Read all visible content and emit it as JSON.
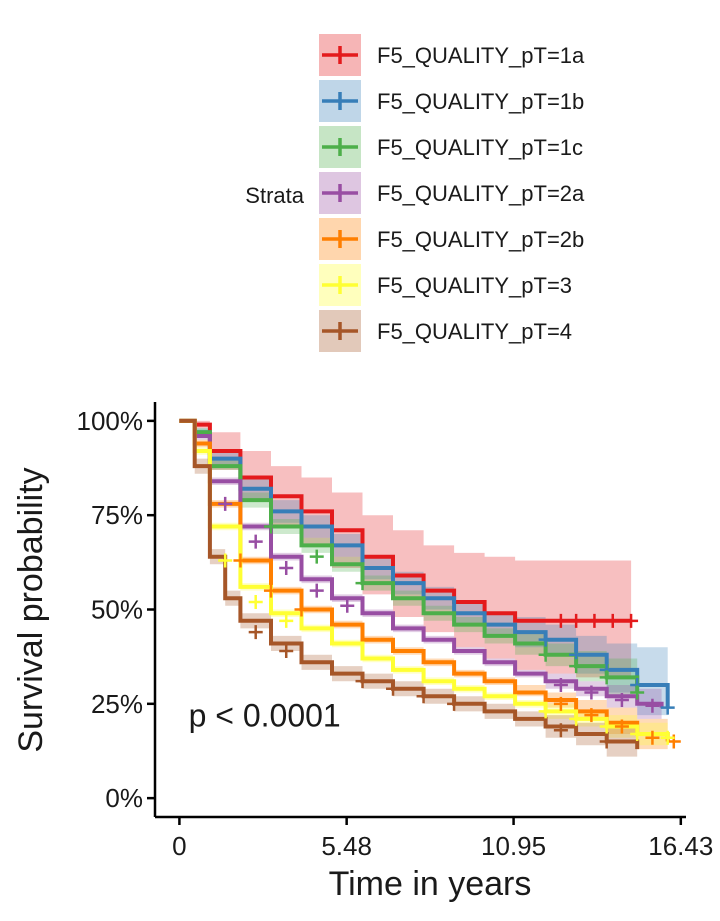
{
  "chart_data": {
    "type": "line",
    "subtype": "kaplan-meier survival curves with confidence bands and censor marks",
    "title": "",
    "xlabel": "Time in years",
    "ylabel": "Survival probability",
    "xlim": [
      -0.8,
      16.6
    ],
    "ylim": [
      -0.05,
      1.05
    ],
    "x_ticks": [
      0,
      5.48,
      10.95,
      16.43
    ],
    "x_tick_labels": [
      "0",
      "5.48",
      "10.95",
      "16.43"
    ],
    "y_ticks": [
      0,
      0.25,
      0.5,
      0.75,
      1.0
    ],
    "y_tick_labels": [
      "0%",
      "25%",
      "50%",
      "75%",
      "100%"
    ],
    "annotation": "p <  0.0001",
    "annotation_pos": {
      "x": 0.3,
      "y": 0.19
    },
    "grid": false,
    "legend": {
      "title": "Strata",
      "position": "top"
    },
    "series": [
      {
        "name": "F5_QUALITY_pT=1a",
        "color": "#E41A1C",
        "x": [
          0,
          0.5,
          1,
          2,
          3,
          4,
          5,
          6,
          7,
          8,
          9,
          10,
          11,
          12,
          13,
          14.8
        ],
        "y": [
          1.0,
          0.99,
          0.92,
          0.85,
          0.8,
          0.76,
          0.71,
          0.64,
          0.59,
          0.55,
          0.52,
          0.49,
          0.47,
          0.47,
          0.47,
          0.47
        ],
        "lower": [
          1.0,
          0.98,
          0.87,
          0.79,
          0.72,
          0.67,
          0.61,
          0.54,
          0.48,
          0.44,
          0.4,
          0.37,
          0.34,
          0.33,
          0.32,
          0.32
        ],
        "upper": [
          1.0,
          1.0,
          0.97,
          0.92,
          0.88,
          0.85,
          0.81,
          0.75,
          0.71,
          0.67,
          0.65,
          0.64,
          0.63,
          0.63,
          0.63,
          0.63
        ],
        "censor_x": [
          12.5,
          13.0,
          13.6,
          14.2,
          14.8
        ],
        "censor_y": [
          0.47,
          0.47,
          0.47,
          0.47,
          0.47
        ]
      },
      {
        "name": "F5_QUALITY_pT=1b",
        "color": "#377EB8",
        "x": [
          0,
          0.5,
          1,
          2,
          3,
          4,
          5,
          6,
          7,
          8,
          9,
          10,
          11,
          12,
          13,
          14,
          15,
          16
        ],
        "y": [
          1.0,
          0.97,
          0.9,
          0.82,
          0.76,
          0.72,
          0.67,
          0.61,
          0.57,
          0.53,
          0.49,
          0.46,
          0.44,
          0.42,
          0.38,
          0.34,
          0.3,
          0.24
        ],
        "lower": [
          1.0,
          0.96,
          0.88,
          0.79,
          0.73,
          0.69,
          0.64,
          0.58,
          0.54,
          0.5,
          0.46,
          0.43,
          0.4,
          0.38,
          0.33,
          0.28,
          0.22,
          0.14
        ],
        "upper": [
          1.0,
          0.98,
          0.92,
          0.85,
          0.79,
          0.75,
          0.7,
          0.64,
          0.6,
          0.56,
          0.52,
          0.49,
          0.48,
          0.46,
          0.43,
          0.41,
          0.4,
          0.46
        ],
        "censor_x": [
          12.0,
          13.0,
          14.0,
          15.0,
          16.0
        ],
        "censor_y": [
          0.42,
          0.38,
          0.34,
          0.3,
          0.24
        ]
      },
      {
        "name": "F5_QUALITY_pT=1c",
        "color": "#4DAF4A",
        "x": [
          0,
          0.5,
          1,
          2,
          3,
          4,
          5,
          6,
          7,
          8,
          9,
          10,
          11,
          12,
          13,
          14,
          15
        ],
        "y": [
          1.0,
          0.97,
          0.88,
          0.79,
          0.72,
          0.67,
          0.62,
          0.57,
          0.53,
          0.49,
          0.46,
          0.43,
          0.41,
          0.38,
          0.35,
          0.32,
          0.28
        ],
        "lower": [
          1.0,
          0.96,
          0.87,
          0.77,
          0.7,
          0.65,
          0.6,
          0.55,
          0.51,
          0.47,
          0.44,
          0.41,
          0.38,
          0.35,
          0.31,
          0.27,
          0.22
        ],
        "upper": [
          1.0,
          0.98,
          0.9,
          0.81,
          0.74,
          0.69,
          0.64,
          0.59,
          0.55,
          0.51,
          0.48,
          0.45,
          0.44,
          0.41,
          0.39,
          0.37,
          0.34
        ],
        "censor_x": [
          3.0,
          4.5,
          6.0,
          12.0,
          13.0,
          14.0,
          15.0
        ],
        "censor_y": [
          0.72,
          0.64,
          0.57,
          0.38,
          0.35,
          0.32,
          0.28
        ]
      },
      {
        "name": "F5_QUALITY_pT=2a",
        "color": "#984EA3",
        "x": [
          0,
          0.5,
          1,
          2,
          3,
          4,
          5,
          6,
          7,
          8,
          9,
          10,
          11,
          12,
          13,
          14,
          15,
          15.8
        ],
        "y": [
          1.0,
          0.96,
          0.84,
          0.72,
          0.64,
          0.58,
          0.53,
          0.49,
          0.45,
          0.42,
          0.39,
          0.36,
          0.33,
          0.31,
          0.29,
          0.27,
          0.25,
          0.24
        ],
        "lower": [
          1.0,
          0.95,
          0.83,
          0.71,
          0.63,
          0.57,
          0.52,
          0.48,
          0.44,
          0.41,
          0.38,
          0.35,
          0.32,
          0.29,
          0.27,
          0.24,
          0.21,
          0.19
        ],
        "upper": [
          1.0,
          0.97,
          0.85,
          0.73,
          0.65,
          0.59,
          0.54,
          0.5,
          0.46,
          0.43,
          0.4,
          0.37,
          0.34,
          0.33,
          0.31,
          0.3,
          0.29,
          0.29
        ],
        "censor_x": [
          1.5,
          2.5,
          3.5,
          4.5,
          5.5,
          12.5,
          13.5,
          14.5,
          15.5
        ],
        "censor_y": [
          0.78,
          0.68,
          0.61,
          0.55,
          0.51,
          0.3,
          0.28,
          0.26,
          0.245
        ]
      },
      {
        "name": "F5_QUALITY_pT=2b",
        "color": "#FF7F00",
        "x": [
          0,
          0.5,
          1,
          2,
          3,
          4,
          5,
          6,
          7,
          8,
          9,
          10,
          11,
          12,
          13,
          14,
          15,
          16
        ],
        "y": [
          1.0,
          0.94,
          0.78,
          0.63,
          0.55,
          0.5,
          0.46,
          0.42,
          0.39,
          0.36,
          0.33,
          0.31,
          0.28,
          0.26,
          0.23,
          0.2,
          0.17,
          0.15
        ],
        "lower": [
          1.0,
          0.93,
          0.77,
          0.62,
          0.54,
          0.49,
          0.45,
          0.41,
          0.38,
          0.35,
          0.32,
          0.3,
          0.27,
          0.24,
          0.21,
          0.17,
          0.13,
          0.1
        ],
        "upper": [
          1.0,
          0.95,
          0.79,
          0.64,
          0.56,
          0.51,
          0.47,
          0.43,
          0.4,
          0.37,
          0.34,
          0.32,
          0.3,
          0.28,
          0.26,
          0.24,
          0.21,
          0.2
        ],
        "censor_x": [
          2.0,
          3.0,
          4.0,
          12.5,
          13.5,
          14.5,
          15.5,
          16.2
        ],
        "censor_y": [
          0.63,
          0.55,
          0.5,
          0.25,
          0.22,
          0.19,
          0.16,
          0.15
        ]
      },
      {
        "name": "F5_QUALITY_pT=3",
        "color": "#FFFF33",
        "x": [
          0,
          0.5,
          1,
          2,
          3,
          4,
          5,
          6,
          7,
          8,
          9,
          10,
          11,
          12,
          13,
          14,
          15,
          16
        ],
        "y": [
          1.0,
          0.92,
          0.72,
          0.56,
          0.49,
          0.45,
          0.41,
          0.37,
          0.34,
          0.31,
          0.29,
          0.27,
          0.25,
          0.23,
          0.21,
          0.19,
          0.17,
          0.16
        ],
        "lower": [
          1.0,
          0.91,
          0.71,
          0.55,
          0.48,
          0.44,
          0.4,
          0.36,
          0.33,
          0.3,
          0.28,
          0.26,
          0.24,
          0.21,
          0.19,
          0.16,
          0.14,
          0.12
        ],
        "upper": [
          1.0,
          0.93,
          0.73,
          0.57,
          0.5,
          0.46,
          0.42,
          0.38,
          0.35,
          0.32,
          0.3,
          0.28,
          0.26,
          0.25,
          0.23,
          0.22,
          0.2,
          0.2
        ],
        "censor_x": [
          1.5,
          2.5,
          3.5,
          12.0,
          13.0,
          14.0,
          15.0,
          16.0
        ],
        "censor_y": [
          0.63,
          0.52,
          0.47,
          0.23,
          0.21,
          0.19,
          0.17,
          0.16
        ]
      },
      {
        "name": "F5_QUALITY_pT=4",
        "color": "#A65628",
        "x": [
          0,
          0.5,
          1,
          1.5,
          2,
          3,
          4,
          5,
          6,
          7,
          8,
          9,
          10,
          11,
          12,
          13,
          14,
          15
        ],
        "y": [
          1.0,
          0.88,
          0.64,
          0.53,
          0.47,
          0.41,
          0.36,
          0.33,
          0.31,
          0.29,
          0.27,
          0.25,
          0.23,
          0.21,
          0.19,
          0.17,
          0.15,
          0.13
        ],
        "lower": [
          1.0,
          0.86,
          0.62,
          0.51,
          0.45,
          0.39,
          0.34,
          0.31,
          0.29,
          0.27,
          0.25,
          0.23,
          0.21,
          0.19,
          0.16,
          0.14,
          0.11,
          0.07
        ],
        "upper": [
          1.0,
          0.9,
          0.66,
          0.55,
          0.49,
          0.43,
          0.38,
          0.35,
          0.33,
          0.31,
          0.29,
          0.27,
          0.25,
          0.23,
          0.22,
          0.2,
          0.19,
          0.19
        ],
        "censor_x": [
          2.5,
          3.5,
          6.0,
          7.0,
          8.0,
          9.0,
          12.5,
          14.0
        ],
        "censor_y": [
          0.44,
          0.39,
          0.31,
          0.29,
          0.27,
          0.25,
          0.18,
          0.15
        ]
      }
    ]
  }
}
